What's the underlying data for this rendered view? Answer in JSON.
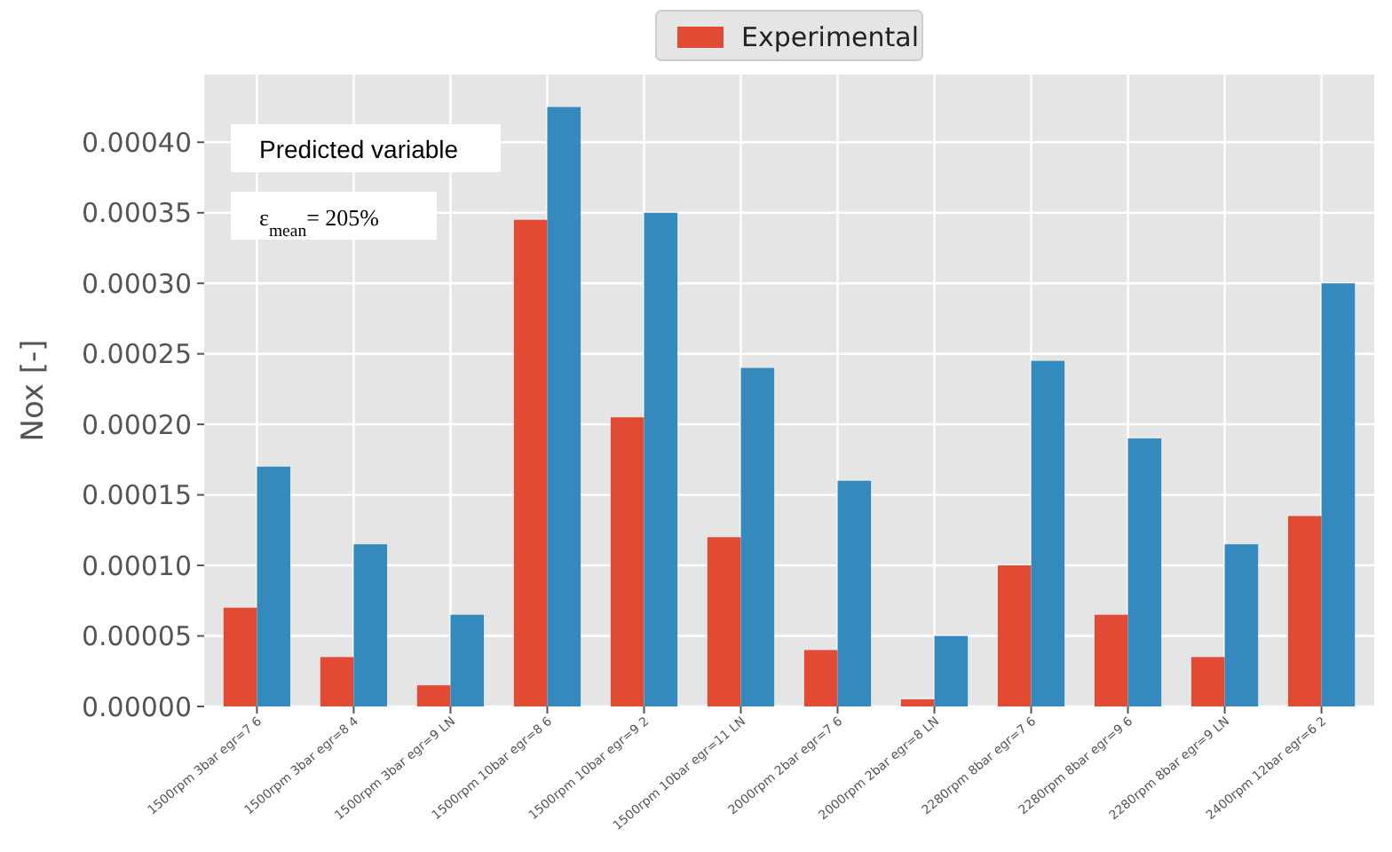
{
  "chart_data": {
    "type": "bar",
    "ylabel": "Nox [-]",
    "categories": [
      "1500rpm 3bar egr=7 6",
      "1500rpm 3bar egr=8 4",
      "1500rpm 3bar egr=9 LN",
      "1500rpm 10bar egr=8 6",
      "1500rpm 10bar egr=9 2",
      "1500rpm 10bar egr=11 LN",
      "2000rpm 2bar egr=7 6",
      "2000rpm 2bar egr=8 LN",
      "2280rpm 8bar egr=7 6",
      "2280rpm 8bar egr=9 6",
      "2280rpm 8bar egr=9 LN",
      "2400rpm 12bar egr=6 2"
    ],
    "series": [
      {
        "name": "Experimental",
        "color": "#e24a33",
        "values": [
          7e-05,
          3.5e-05,
          1.5e-05,
          0.000345,
          0.000205,
          0.00012,
          4e-05,
          5e-06,
          0.0001,
          6.5e-05,
          3.5e-05,
          0.000135
        ]
      },
      {
        "color": "#348abd",
        "values": [
          0.00017,
          0.000115,
          6.5e-05,
          0.000425,
          0.00035,
          0.00024,
          0.00016,
          5e-05,
          0.000245,
          0.00019,
          0.000115,
          0.0003
        ]
      }
    ],
    "ylim": [
      0,
      0.000448
    ],
    "yticks": [
      {
        "value": 0,
        "label": "0.00000"
      },
      {
        "value": 5e-05,
        "label": "0.00005"
      },
      {
        "value": 0.0001,
        "label": "0.00010"
      },
      {
        "value": 0.00015,
        "label": "0.00015"
      },
      {
        "value": 0.0002,
        "label": "0.00020"
      },
      {
        "value": 0.00025,
        "label": "0.00025"
      },
      {
        "value": 0.0003,
        "label": "0.00030"
      },
      {
        "value": 0.00035,
        "label": "0.00035"
      },
      {
        "value": 0.0004,
        "label": "0.00040"
      }
    ],
    "annotations": [
      "Predicted variable",
      "ε$_{mean}$= 205%"
    ],
    "grid": true,
    "legend": "top"
  }
}
